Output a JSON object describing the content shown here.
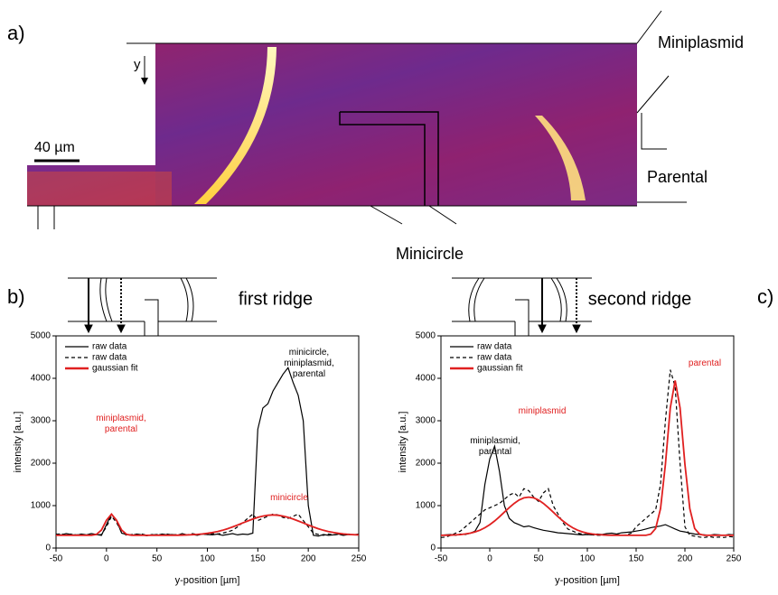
{
  "panels": {
    "a": "a)",
    "b": "b)",
    "c": "c)"
  },
  "image": {
    "axis_label": "y",
    "scale_bar": "40 µm",
    "outputs": [
      "Miniplasmid",
      "Parental",
      "Minicircle"
    ]
  },
  "chart_data": [
    {
      "type": "line",
      "title": "first ridge",
      "xlabel": "y-position [µm]",
      "ylabel": "intensity [a.u.]",
      "xlim": [
        -50,
        250
      ],
      "xticks": [
        -50,
        0,
        50,
        100,
        150,
        200,
        250
      ],
      "ylim": [
        0,
        5000
      ],
      "yticks": [
        0,
        1000,
        2000,
        3000,
        4000,
        5000
      ],
      "legend": "upper left",
      "x": [
        -50,
        -45,
        -40,
        -35,
        -30,
        -25,
        -20,
        -15,
        -10,
        -5,
        0,
        5,
        10,
        15,
        20,
        25,
        30,
        35,
        40,
        45,
        50,
        55,
        60,
        65,
        70,
        75,
        80,
        85,
        90,
        95,
        100,
        105,
        110,
        115,
        120,
        125,
        130,
        135,
        140,
        145,
        150,
        155,
        160,
        165,
        170,
        175,
        180,
        185,
        190,
        195,
        200,
        205,
        210,
        215,
        220,
        225,
        230,
        235,
        240,
        245,
        250
      ],
      "series": [
        {
          "name": "raw data",
          "color": "#000000",
          "linestyle": "solid",
          "values": [
            330,
            310,
            340,
            320,
            300,
            330,
            310,
            340,
            320,
            300,
            550,
            800,
            650,
            350,
            320,
            300,
            330,
            310,
            290,
            320,
            300,
            330,
            310,
            320,
            300,
            340,
            310,
            320,
            300,
            330,
            320,
            310,
            330,
            300,
            320,
            340,
            310,
            330,
            320,
            350,
            2800,
            3300,
            3400,
            3700,
            3900,
            4100,
            4250,
            3900,
            3600,
            3000,
            1000,
            300,
            280,
            320,
            300,
            310,
            330,
            300,
            320,
            310,
            330
          ]
        },
        {
          "name": "raw data",
          "color": "#000000",
          "linestyle": "dashed",
          "values": [
            320,
            340,
            300,
            330,
            310,
            320,
            300,
            340,
            310,
            320,
            500,
            750,
            600,
            380,
            300,
            320,
            310,
            330,
            300,
            310,
            320,
            300,
            330,
            310,
            320,
            300,
            310,
            340,
            320,
            330,
            320,
            340,
            330,
            350,
            380,
            420,
            500,
            600,
            700,
            800,
            650,
            700,
            750,
            800,
            780,
            720,
            700,
            750,
            800,
            650,
            500,
            350,
            320,
            300,
            330,
            310,
            320,
            300,
            330,
            310,
            320
          ]
        },
        {
          "name": "gaussian fit",
          "color": "#e02020",
          "linestyle": "solid",
          "values": [
            300,
            300,
            300,
            300,
            300,
            300,
            300,
            300,
            322,
            425,
            653,
            800,
            653,
            425,
            322,
            303,
            300,
            300,
            300,
            300,
            300,
            300,
            301,
            302,
            303,
            305,
            309,
            314,
            321,
            332,
            346,
            365,
            390,
            420,
            456,
            497,
            543,
            591,
            639,
            684,
            724,
            754,
            773,
            780,
            773,
            754,
            724,
            684,
            639,
            591,
            543,
            497,
            456,
            420,
            390,
            365,
            346,
            332,
            321,
            314,
            309
          ]
        }
      ],
      "annotations": [
        {
          "lines": [
            "minicircle,",
            "miniplasmid,",
            "parental"
          ],
          "color": "#000000"
        },
        {
          "lines": [
            "miniplasmid,",
            "parental"
          ],
          "color": "#e02020"
        },
        {
          "lines": [
            "minicircle"
          ],
          "color": "#e02020"
        }
      ]
    },
    {
      "type": "line",
      "title": "second ridge",
      "xlabel": "y-position [µm]",
      "ylabel": "intensity [a.u.]",
      "xlim": [
        -50,
        250
      ],
      "xticks": [
        -50,
        0,
        50,
        100,
        150,
        200,
        250
      ],
      "ylim": [
        0,
        5000
      ],
      "yticks": [
        0,
        1000,
        2000,
        3000,
        4000,
        5000
      ],
      "legend": "upper left",
      "x": [
        -50,
        -45,
        -40,
        -35,
        -30,
        -25,
        -20,
        -15,
        -10,
        -5,
        0,
        5,
        10,
        15,
        20,
        25,
        30,
        35,
        40,
        45,
        50,
        55,
        60,
        65,
        70,
        75,
        80,
        85,
        90,
        95,
        100,
        105,
        110,
        115,
        120,
        125,
        130,
        135,
        140,
        145,
        150,
        155,
        160,
        165,
        170,
        175,
        180,
        185,
        190,
        195,
        200,
        205,
        210,
        215,
        220,
        225,
        230,
        235,
        240,
        245,
        250
      ],
      "series": [
        {
          "name": "raw data",
          "color": "#000000",
          "linestyle": "solid",
          "values": [
            300,
            310,
            320,
            300,
            330,
            320,
            350,
            400,
            600,
            1500,
            2100,
            2400,
            1800,
            1000,
            700,
            600,
            550,
            500,
            520,
            480,
            450,
            420,
            400,
            380,
            360,
            350,
            340,
            330,
            320,
            310,
            320,
            310,
            330,
            320,
            340,
            350,
            330,
            360,
            370,
            380,
            400,
            420,
            450,
            480,
            500,
            520,
            550,
            500,
            450,
            400,
            380,
            350,
            330,
            320,
            310,
            300,
            320,
            310,
            300,
            320,
            310
          ]
        },
        {
          "name": "raw data",
          "color": "#000000",
          "linestyle": "dashed",
          "values": [
            250,
            260,
            300,
            350,
            400,
            500,
            600,
            700,
            800,
            900,
            950,
            1000,
            1050,
            1150,
            1250,
            1300,
            1200,
            1400,
            1350,
            1200,
            1100,
            1300,
            1400,
            1000,
            800,
            600,
            450,
            400,
            350,
            330,
            320,
            310,
            300,
            300,
            310,
            300,
            320,
            300,
            310,
            350,
            500,
            600,
            700,
            800,
            900,
            1500,
            3000,
            4200,
            3800,
            2000,
            500,
            300,
            280,
            260,
            250,
            270,
            250,
            260,
            250,
            270,
            260
          ]
        },
        {
          "name": "gaussian fit",
          "color": "#e02020",
          "linestyle": "solid",
          "values": [
            301,
            303,
            305,
            310,
            318,
            331,
            350,
            380,
            422,
            478,
            550,
            638,
            738,
            846,
            953,
            1052,
            1131,
            1182,
            1200,
            1182,
            1131,
            1052,
            953,
            846,
            738,
            638,
            550,
            478,
            422,
            380,
            350,
            331,
            318,
            310,
            305,
            303,
            301,
            300,
            300,
            300,
            300,
            300,
            300,
            328,
            461,
            928,
            1972,
            3304,
            3950,
            3304,
            1972,
            928,
            461,
            328,
            300,
            300,
            300,
            300,
            300,
            300,
            300
          ]
        }
      ],
      "annotations": [
        {
          "lines": [
            "miniplasmid,",
            "parental"
          ],
          "color": "#000000"
        },
        {
          "lines": [
            "miniplasmid"
          ],
          "color": "#e02020"
        },
        {
          "lines": [
            "parental"
          ],
          "color": "#e02020"
        }
      ]
    }
  ]
}
